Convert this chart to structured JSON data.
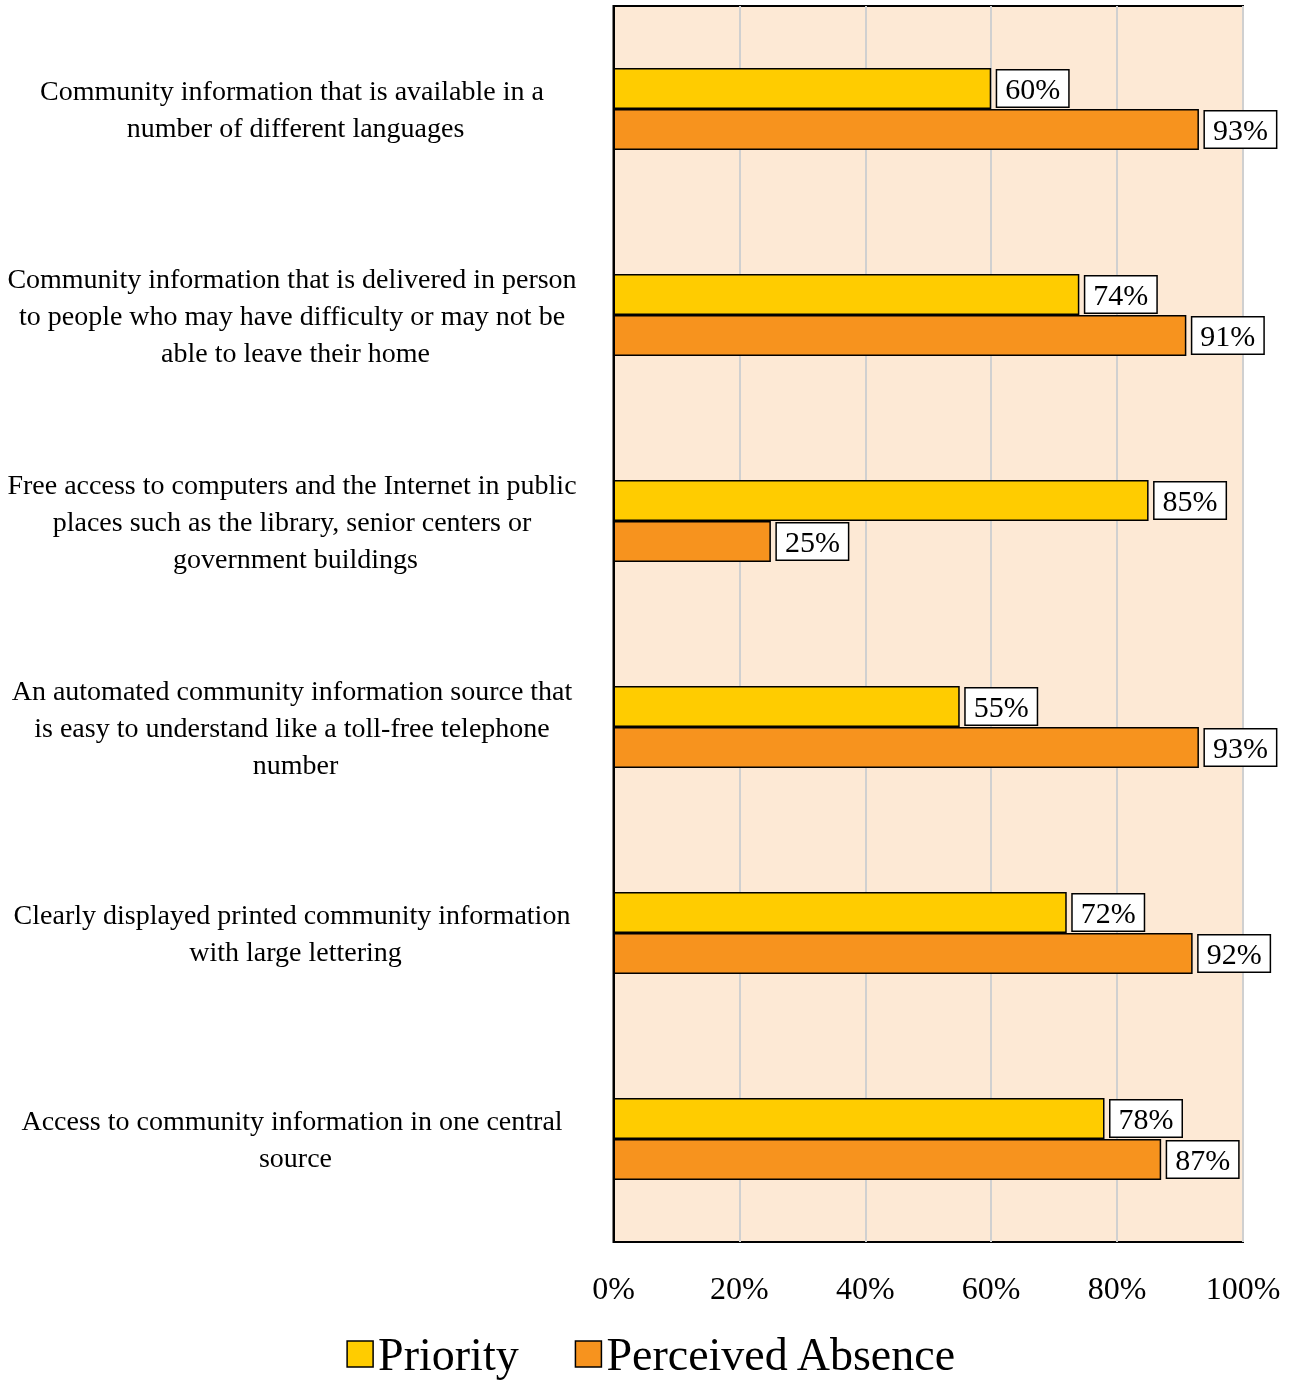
{
  "chart_data": {
    "type": "bar",
    "orientation": "horizontal",
    "categories": [
      "Community information that is available in a number of different languages",
      "Community information that is delivered in person to people who may have difficulty or may not be able to leave their home",
      "Free access to computers and the Internet in public places such as the library, senior centers or government buildings",
      "An automated community information source that is easy to understand like a toll-free telephone number",
      "Clearly displayed printed community information with large lettering",
      "Access to community information in one central source"
    ],
    "series": [
      {
        "name": "Priority",
        "color": "#ffcc00",
        "values": [
          60,
          74,
          85,
          55,
          72,
          78
        ],
        "value_labels": [
          "60%",
          "74%",
          "85%",
          "55%",
          "72%",
          "78%"
        ]
      },
      {
        "name": "Perceived Absence",
        "color": "#f7931e",
        "values": [
          93,
          91,
          25,
          93,
          92,
          87
        ],
        "value_labels": [
          "93%",
          "91%",
          "25%",
          "93%",
          "92%",
          "87%"
        ]
      }
    ],
    "xlim": [
      0,
      100
    ],
    "xticks": [
      {
        "value": 0,
        "label": "0%"
      },
      {
        "value": 20,
        "label": "20%"
      },
      {
        "value": 40,
        "label": "40%"
      },
      {
        "value": 60,
        "label": "60%"
      },
      {
        "value": 80,
        "label": "80%"
      },
      {
        "value": 100,
        "label": "100%"
      }
    ],
    "grid": "x",
    "legend": "bottom"
  }
}
